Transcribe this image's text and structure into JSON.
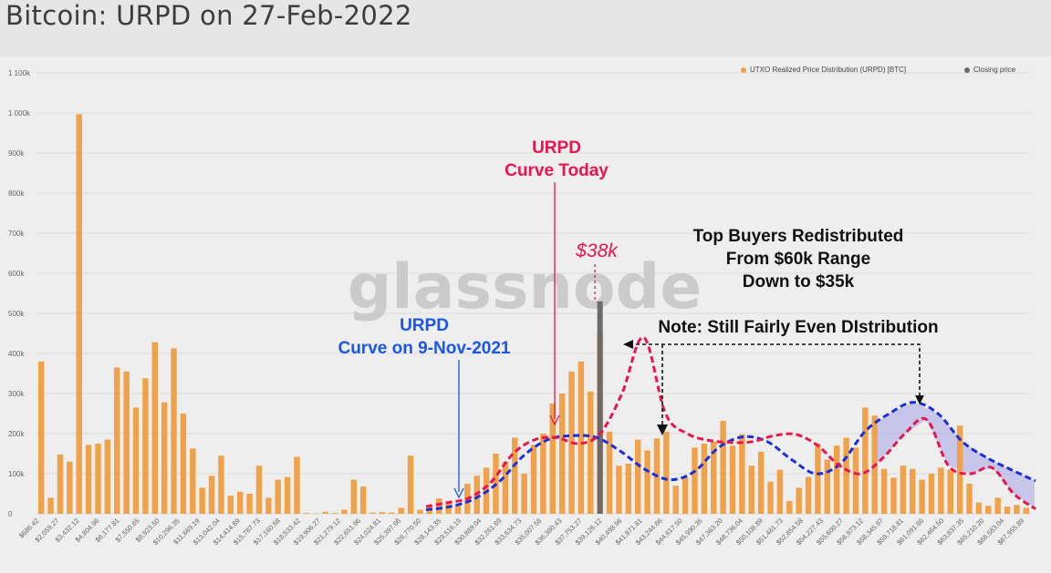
{
  "title": "Bitcoin: URPD on 27-Feb-2022",
  "watermark": "glassnode",
  "colors": {
    "bar": "#f0a24a",
    "closing": "#6b6b6b",
    "today_curve": "#e8154f",
    "nov_curve": "#1a2fd8",
    "nov_label": "#1a56e8",
    "shade": "#a7a4e6",
    "grid": "#dcdcdc"
  },
  "legend": {
    "urpd": "UTXO Realized Price Distribution (URPD) [BTC]",
    "closing": "Closing price"
  },
  "annotations": {
    "today_line1": "URPD",
    "today_line2": "Curve Today",
    "price_tag": "$38k",
    "nov_line1": "URPD",
    "nov_line2": "Curve on 9-Nov-2021",
    "top_line1": "Top Buyers Redistributed",
    "top_line2": "From $60k Range",
    "top_line3": "Down to $35k",
    "note": "Note: Still Fairly Even DIstribution"
  },
  "chart_data": {
    "type": "bar",
    "title": "Bitcoin: URPD on 27-Feb-2022",
    "ylim": [
      0,
      1100000
    ],
    "yticks": [
      "0",
      "100k",
      "200k",
      "300k",
      "400k",
      "500k",
      "600k",
      "700k",
      "800k",
      "900k",
      "1 000k",
      "1 100k"
    ],
    "xtick_labels": [
      "$686.42",
      "$2,059.27",
      "$3,432.12",
      "$4,804.96",
      "$6,177.81",
      "$7,550.65",
      "$8,923.50",
      "$10,296.35",
      "$11,669.19",
      "$13,042.04",
      "$14,414.89",
      "$15,787.73",
      "$17,160.58",
      "$18,533.42",
      "$19,906.27",
      "$21,279.12",
      "$22,651.96",
      "$24,024.81",
      "$25,397.66",
      "$26,770.50",
      "$28,143.35",
      "$29,516.19",
      "$30,889.04",
      "$32,261.89",
      "$33,634.73",
      "$35,007.58",
      "$36,380.43",
      "$37,753.27",
      "$39,126.12",
      "$40,498.96",
      "$41,871.81",
      "$43,244.66",
      "$44,617.50",
      "$45,990.35",
      "$47,363.20",
      "$48,736.04",
      "$50,108.89",
      "$51,481.73",
      "$52,854.58",
      "$54,227.43",
      "$55,600.27",
      "$56,973.12",
      "$58,345.97",
      "$59,718.81",
      "$61,091.66",
      "$62,464.50",
      "$63,837.35",
      "$65,210.20",
      "$66,583.04",
      "$67,955.89"
    ],
    "series": [
      {
        "name": "UTXO Realized Price Distribution (URPD) [BTC]",
        "values": [
          380000,
          40000,
          148000,
          130000,
          997000,
          172000,
          175000,
          185000,
          365000,
          355000,
          265000,
          338000,
          428000,
          278000,
          413000,
          250000,
          163000,
          65000,
          95000,
          145000,
          45000,
          55000,
          50000,
          120000,
          40000,
          85000,
          92000,
          142000,
          2000,
          1000,
          5000,
          2000,
          10000,
          85000,
          68000,
          3000,
          4000,
          3000,
          15000,
          145000,
          10000,
          20000,
          38000,
          30000,
          22000,
          75000,
          95000,
          115000,
          150000,
          130000,
          190000,
          100000,
          172000,
          200000,
          275000,
          300000,
          355000,
          380000,
          305000,
          450000,
          205000,
          120000,
          125000,
          185000,
          158000,
          188000,
          205000,
          70000,
          92000,
          165000,
          175000,
          180000,
          232000,
          170000,
          198000,
          120000,
          155000,
          80000,
          110000,
          32000,
          65000,
          92000,
          175000,
          135000,
          170000,
          190000,
          165000,
          265000,
          245000,
          112000,
          90000,
          120000,
          112000,
          85000,
          100000,
          115000,
          110000,
          220000,
          75000,
          28000,
          20000,
          40000,
          18000,
          22000,
          15000
        ]
      },
      {
        "name": "Closing price",
        "values": [
          530000
        ]
      }
    ],
    "curves": [
      {
        "name": "URPD Curve Today",
        "values": [
          18000,
          28000,
          40000,
          80000,
          150000,
          185000,
          190000,
          175000,
          200000,
          300000,
          440000,
          250000,
          200000,
          183000,
          178000,
          180000,
          195000,
          198000,
          170000,
          120000,
          100000,
          140000,
          200000,
          235000,
          120000,
          100000,
          115000,
          50000,
          12000
        ]
      },
      {
        "name": "URPD Curve on 9-Nov-2021",
        "values": [
          10000,
          18000,
          38000,
          80000,
          145000,
          185000,
          195000,
          190000,
          155000,
          110000,
          85000,
          105000,
          165000,
          192000,
          180000,
          135000,
          100000,
          125000,
          205000,
          250000,
          278000,
          250000,
          180000,
          140000,
          110000,
          82000
        ]
      }
    ]
  }
}
